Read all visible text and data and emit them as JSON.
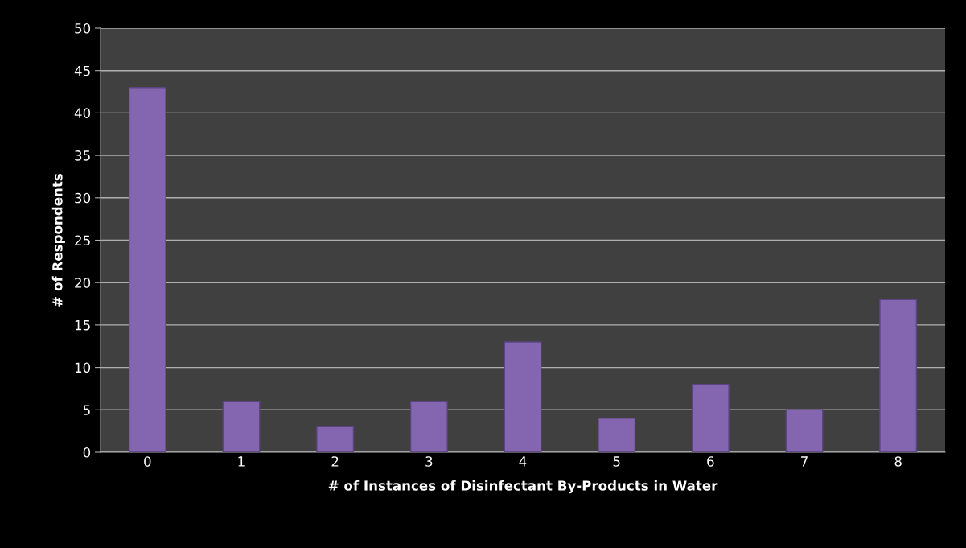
{
  "chart_data": {
    "type": "bar",
    "xlabel": "# of Instances of Disinfectant By-Products in Water",
    "ylabel": "# of Respondents",
    "categories": [
      "0",
      "1",
      "2",
      "3",
      "4",
      "5",
      "6",
      "7",
      "8"
    ],
    "values": [
      43,
      6,
      3,
      6,
      13,
      4,
      8,
      5,
      18
    ],
    "color": "#8466b0",
    "ylim": [
      0,
      50
    ],
    "yticks": [
      0,
      5,
      10,
      15,
      20,
      25,
      30,
      35,
      40,
      45,
      50
    ],
    "grid": "y",
    "legend": false
  }
}
